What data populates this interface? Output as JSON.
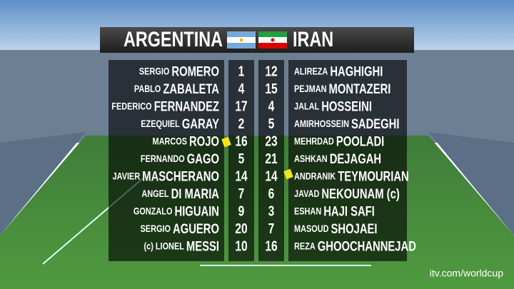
{
  "header": {
    "home": "ARGENTINA",
    "away": "IRAN"
  },
  "home_players": [
    {
      "first": "SERGIO",
      "last": "ROMERO",
      "number": 1
    },
    {
      "first": "PABLO",
      "last": "ZABALETA",
      "number": 4
    },
    {
      "first": "FEDERICO",
      "last": "FERNANDEZ",
      "number": 17
    },
    {
      "first": "EZEQUIEL",
      "last": "GARAY",
      "number": 2
    },
    {
      "first": "MARCOS",
      "last": "ROJO",
      "number": 16
    },
    {
      "first": "FERNANDO",
      "last": "GAGO",
      "number": 5
    },
    {
      "first": "JAVIER",
      "last": "MASCHERANO",
      "number": 14
    },
    {
      "first": "ANGEL",
      "last": "DI MARIA",
      "number": 7
    },
    {
      "first": "GONZALO",
      "last": "HIGUAIN",
      "number": 9
    },
    {
      "first": "SERGIO",
      "last": "AGUERO",
      "number": 20
    },
    {
      "first": "(c) LIONEL",
      "last": "MESSI",
      "number": 10
    }
  ],
  "away_players": [
    {
      "first": "ALIREZA",
      "last": "HAGHIGHI",
      "number": 12
    },
    {
      "first": "PEJMAN",
      "last": "MONTAZERI",
      "number": 15
    },
    {
      "first": "JALAL",
      "last": "HOSSEINI",
      "number": 4
    },
    {
      "first": "AMIRHOSSEIN",
      "last": "SADEGHI",
      "number": 5
    },
    {
      "first": "MEHRDAD",
      "last": "POOLADI",
      "number": 23
    },
    {
      "first": "ASHKAN",
      "last": "DEJAGAH",
      "number": 21
    },
    {
      "first": "ANDRANIK",
      "last": "TEYMOURIAN",
      "number": 14
    },
    {
      "first": "JAVAD",
      "last": "NEKOUNAM (c)",
      "number": 6
    },
    {
      "first": "ESHAN",
      "last": "HAJI SAFI",
      "number": 3
    },
    {
      "first": "MASOUD",
      "last": "SHOJAEI",
      "number": 7
    },
    {
      "first": "REZA",
      "last": "GHOOCHANNEJAD",
      "number": 16
    }
  ],
  "watermark": "itv.com/worldcup"
}
